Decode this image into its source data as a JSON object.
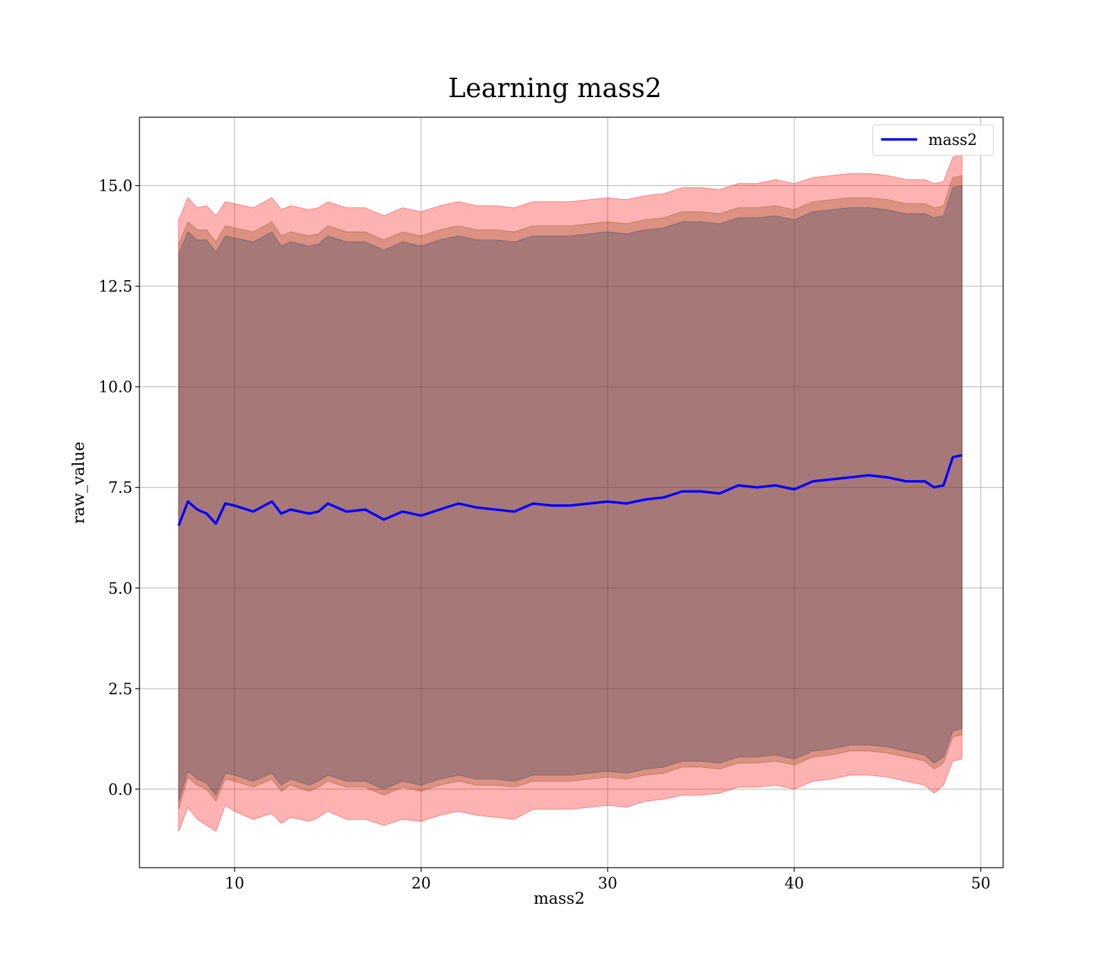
{
  "chart_data": {
    "type": "line",
    "title": "Learning mass2",
    "xlabel": "mass2",
    "ylabel": "raw_value",
    "xlim": [
      4.9,
      51.2
    ],
    "ylim": [
      -1.95,
      16.7
    ],
    "x_ticks": [
      10,
      20,
      30,
      40,
      50
    ],
    "x_tick_labels": [
      "10",
      "20",
      "30",
      "40",
      "50"
    ],
    "y_ticks": [
      0.0,
      2.5,
      5.0,
      7.5,
      10.0,
      12.5,
      15.0
    ],
    "y_tick_labels": [
      "0.0",
      "2.5",
      "5.0",
      "7.5",
      "10.0",
      "12.5",
      "15.0"
    ],
    "grid": true,
    "legend_position": "top-right",
    "x": [
      7.0,
      7.5,
      8.0,
      8.5,
      9.0,
      9.5,
      10.0,
      11.0,
      12.0,
      12.5,
      13.0,
      14.0,
      14.5,
      15.0,
      16.0,
      17.0,
      18.0,
      19.0,
      20.0,
      21.0,
      22.0,
      23.0,
      24.0,
      25.0,
      26.0,
      27.0,
      28.0,
      29.0,
      30.0,
      31.0,
      32.0,
      33.0,
      34.0,
      35.0,
      36.0,
      37.0,
      38.0,
      39.0,
      40.0,
      41.0,
      42.0,
      43.0,
      44.0,
      45.0,
      46.0,
      47.0,
      47.5,
      48.0,
      48.5,
      49.0
    ],
    "series": [
      {
        "name": "mass2",
        "color": "#0000ff",
        "values": [
          6.55,
          7.15,
          6.95,
          6.85,
          6.6,
          7.1,
          7.05,
          6.9,
          7.15,
          6.85,
          6.95,
          6.85,
          6.9,
          7.1,
          6.9,
          6.95,
          6.7,
          6.9,
          6.8,
          6.95,
          7.1,
          7.0,
          6.95,
          6.9,
          7.1,
          7.05,
          7.05,
          7.1,
          7.15,
          7.1,
          7.2,
          7.25,
          7.4,
          7.4,
          7.35,
          7.55,
          7.5,
          7.55,
          7.45,
          7.65,
          7.7,
          7.75,
          7.8,
          7.75,
          7.65,
          7.65,
          7.5,
          7.55,
          8.25,
          8.3
        ]
      }
    ],
    "bands": [
      {
        "color": "#ff0000",
        "opacity": 0.3,
        "lower": [
          -1.05,
          -0.45,
          -0.75,
          -0.9,
          -1.05,
          -0.4,
          -0.55,
          -0.75,
          -0.6,
          -0.85,
          -0.7,
          -0.8,
          -0.7,
          -0.55,
          -0.75,
          -0.75,
          -0.9,
          -0.75,
          -0.8,
          -0.65,
          -0.55,
          -0.65,
          -0.7,
          -0.75,
          -0.5,
          -0.5,
          -0.5,
          -0.45,
          -0.4,
          -0.45,
          -0.3,
          -0.25,
          -0.15,
          -0.15,
          -0.1,
          0.05,
          0.05,
          0.1,
          0.0,
          0.2,
          0.25,
          0.35,
          0.35,
          0.3,
          0.2,
          0.1,
          -0.1,
          0.1,
          0.7,
          0.75
        ],
        "upper": [
          14.15,
          14.7,
          14.45,
          14.5,
          14.25,
          14.6,
          14.55,
          14.45,
          14.7,
          14.4,
          14.5,
          14.4,
          14.45,
          14.6,
          14.45,
          14.45,
          14.25,
          14.45,
          14.35,
          14.5,
          14.6,
          14.5,
          14.5,
          14.45,
          14.6,
          14.6,
          14.6,
          14.65,
          14.7,
          14.65,
          14.75,
          14.8,
          14.95,
          14.95,
          14.9,
          15.05,
          15.05,
          15.15,
          15.05,
          15.2,
          15.25,
          15.3,
          15.3,
          15.25,
          15.15,
          15.15,
          15.05,
          15.1,
          15.7,
          15.8
        ]
      },
      {
        "color": "#8b4513",
        "opacity": 0.3,
        "lower": [
          -0.5,
          0.3,
          0.1,
          0.0,
          -0.3,
          0.25,
          0.2,
          0.05,
          0.25,
          -0.05,
          0.1,
          -0.05,
          0.05,
          0.2,
          0.05,
          0.05,
          -0.15,
          0.05,
          -0.05,
          0.1,
          0.2,
          0.1,
          0.1,
          0.05,
          0.2,
          0.2,
          0.2,
          0.25,
          0.3,
          0.25,
          0.35,
          0.4,
          0.55,
          0.55,
          0.5,
          0.65,
          0.65,
          0.7,
          0.6,
          0.8,
          0.85,
          0.95,
          0.95,
          0.9,
          0.8,
          0.7,
          0.5,
          0.65,
          1.3,
          1.35
        ],
        "upper": [
          13.55,
          14.1,
          13.9,
          13.9,
          13.6,
          14.0,
          13.95,
          13.85,
          14.1,
          13.75,
          13.85,
          13.75,
          13.8,
          14.0,
          13.85,
          13.85,
          13.65,
          13.85,
          13.75,
          13.9,
          14.0,
          13.9,
          13.9,
          13.85,
          14.0,
          14.0,
          14.0,
          14.05,
          14.1,
          14.05,
          14.15,
          14.2,
          14.35,
          14.35,
          14.3,
          14.45,
          14.45,
          14.5,
          14.4,
          14.6,
          14.65,
          14.7,
          14.7,
          14.65,
          14.55,
          14.55,
          14.45,
          14.5,
          15.2,
          15.25
        ]
      },
      {
        "color": "#1e3a5f",
        "opacity": 0.28,
        "lower": [
          -0.3,
          0.45,
          0.25,
          0.15,
          -0.15,
          0.4,
          0.35,
          0.2,
          0.4,
          0.1,
          0.25,
          0.1,
          0.2,
          0.35,
          0.2,
          0.2,
          0.0,
          0.2,
          0.1,
          0.25,
          0.35,
          0.25,
          0.25,
          0.2,
          0.35,
          0.35,
          0.35,
          0.4,
          0.45,
          0.4,
          0.5,
          0.55,
          0.7,
          0.7,
          0.65,
          0.8,
          0.8,
          0.85,
          0.75,
          0.95,
          1.0,
          1.1,
          1.1,
          1.05,
          0.95,
          0.85,
          0.65,
          0.8,
          1.45,
          1.5
        ],
        "upper": [
          13.3,
          13.85,
          13.65,
          13.65,
          13.35,
          13.75,
          13.7,
          13.6,
          13.85,
          13.5,
          13.6,
          13.5,
          13.55,
          13.75,
          13.6,
          13.6,
          13.4,
          13.6,
          13.5,
          13.65,
          13.75,
          13.65,
          13.65,
          13.6,
          13.75,
          13.75,
          13.75,
          13.8,
          13.85,
          13.8,
          13.9,
          13.95,
          14.1,
          14.1,
          14.05,
          14.2,
          14.2,
          14.25,
          14.15,
          14.35,
          14.4,
          14.45,
          14.45,
          14.4,
          14.3,
          14.3,
          14.2,
          14.25,
          14.95,
          15.0
        ]
      }
    ]
  }
}
